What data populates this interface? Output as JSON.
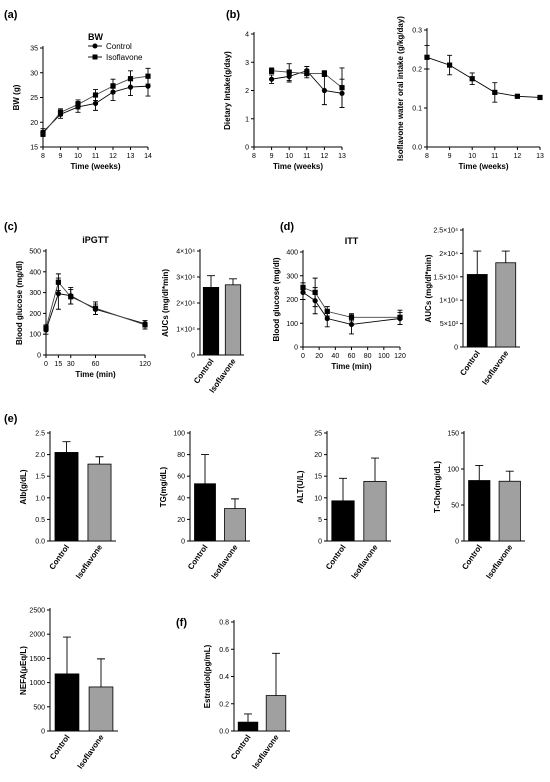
{
  "colors": {
    "control_bar": "#000000",
    "isoflavone_bar": "#a0a0a0",
    "axis": "#000000"
  },
  "panel_letters": [
    "(a)",
    "(b)",
    "(c)",
    "(d)",
    "(e)",
    "(f)"
  ],
  "chart_data": [
    {
      "id": "bw",
      "type": "line",
      "panel": "(a)",
      "title": "BW",
      "xlabel": "Time (weeks)",
      "ylabel": "BW (g)",
      "xlim": [
        8,
        14
      ],
      "ylim": [
        15,
        35
      ],
      "xticks": [
        8,
        9,
        10,
        11,
        12,
        13,
        14
      ],
      "yticks": [
        15,
        20,
        25,
        30,
        35
      ],
      "legend": "top-right",
      "series": [
        {
          "name": "Control",
          "marker": "circle",
          "x": [
            8,
            9,
            10,
            11,
            12,
            13,
            14
          ],
          "values": [
            18.0,
            21.6,
            23.1,
            23.8,
            26.1,
            27.1,
            27.3
          ],
          "err": [
            0.7,
            0.8,
            1.1,
            1.4,
            1.7,
            1.7,
            2.0
          ]
        },
        {
          "name": "Isoflavone",
          "marker": "square",
          "x": [
            8,
            9,
            10,
            11,
            12,
            13,
            14
          ],
          "values": [
            17.7,
            22.0,
            23.6,
            25.5,
            27.3,
            28.8,
            29.3
          ],
          "err": [
            0.6,
            0.7,
            0.9,
            1.1,
            1.4,
            1.6,
            1.6
          ]
        }
      ]
    },
    {
      "id": "intake",
      "type": "line",
      "panel": "(b)",
      "title": "",
      "xlabel": "Time (weeks)",
      "ylabel": "Dietary Intake(g/day)",
      "xlim": [
        8,
        13
      ],
      "ylim": [
        0,
        4
      ],
      "xticks": [
        8,
        9,
        10,
        11,
        12,
        13
      ],
      "yticks": [
        0,
        1,
        2,
        3,
        4
      ],
      "series": [
        {
          "name": "Control",
          "marker": "circle",
          "x": [
            9,
            10,
            11,
            12,
            13
          ],
          "values": [
            2.4,
            2.5,
            2.7,
            2.0,
            1.9
          ],
          "err": [
            0.15,
            0.2,
            0.15,
            0.5,
            0.5
          ]
        },
        {
          "name": "Isoflavone",
          "marker": "square",
          "x": [
            9,
            10,
            11,
            12,
            13
          ],
          "values": [
            2.7,
            2.65,
            2.6,
            2.6,
            2.1
          ],
          "err": [
            0.1,
            0.3,
            0.15,
            0.1,
            0.7
          ]
        }
      ]
    },
    {
      "id": "iso_intake",
      "type": "line",
      "panel": "",
      "title": "",
      "xlabel": "Time (weeks)",
      "ylabel": "Isoflavone water oral intake (g/kg/day)",
      "xlim": [
        8,
        13
      ],
      "ylim": [
        0,
        0.3
      ],
      "xticks": [
        8,
        9,
        10,
        11,
        12,
        13
      ],
      "yticks": [
        0,
        0.1,
        0.2,
        0.3
      ],
      "ytick_labels": [
        "0.0",
        "0.1",
        "0.2",
        "0.3"
      ],
      "series": [
        {
          "name": "Isoflavone",
          "marker": "square",
          "x": [
            8,
            9,
            10,
            11,
            12,
            13
          ],
          "values": [
            0.23,
            0.21,
            0.175,
            0.14,
            0.13,
            0.127
          ],
          "err": [
            0.03,
            0.025,
            0.015,
            0.025,
            0.003,
            0.003
          ]
        }
      ]
    },
    {
      "id": "ipgtt",
      "type": "line",
      "panel": "(c)",
      "title": "iPGTT",
      "xlabel": "Time (min)",
      "ylabel": "Blood glucose (mg/dl)",
      "xlim": [
        0,
        120
      ],
      "ylim": [
        0,
        500
      ],
      "xticks": [
        0,
        15,
        30,
        60,
        120
      ],
      "yticks": [
        0,
        100,
        200,
        300,
        400,
        500
      ],
      "series": [
        {
          "name": "Control",
          "marker": "circle",
          "x": [
            0,
            15,
            30,
            60,
            120
          ],
          "values": [
            120,
            295,
            285,
            220,
            150
          ],
          "err": [
            20,
            75,
            40,
            25,
            15
          ]
        },
        {
          "name": "Isoflavone",
          "marker": "square",
          "x": [
            0,
            15,
            30,
            60,
            120
          ],
          "values": [
            130,
            350,
            280,
            225,
            145
          ],
          "err": [
            15,
            40,
            35,
            30,
            20
          ]
        }
      ]
    },
    {
      "id": "ipgtt_auc",
      "type": "bar",
      "panel": "",
      "title": "",
      "xlabel": "",
      "ylabel": "AUCs (mg/dl*min)",
      "categories": [
        "Control",
        "Isoflavone"
      ],
      "values": [
        26000,
        27000
      ],
      "err": [
        4500,
        2300
      ],
      "ylim": [
        0,
        40000
      ],
      "yticks": [
        0,
        10000,
        20000,
        30000,
        40000
      ],
      "ytick_labels": [
        "0",
        "1×10⁴",
        "2×10⁴",
        "3×10⁴",
        "4×10⁴"
      ]
    },
    {
      "id": "itt",
      "type": "line",
      "panel": "(d)",
      "title": "ITT",
      "xlabel": "Time (min)",
      "ylabel": "Blood glucose (mg/dl)",
      "xlim": [
        0,
        120
      ],
      "ylim": [
        0,
        400
      ],
      "xticks": [
        0,
        20,
        40,
        60,
        80,
        100,
        120
      ],
      "yticks": [
        0,
        100,
        200,
        300,
        400
      ],
      "series": [
        {
          "name": "Control",
          "marker": "circle",
          "x": [
            0,
            15,
            30,
            60,
            120
          ],
          "values": [
            230,
            195,
            120,
            95,
            120
          ],
          "err": [
            30,
            55,
            35,
            40,
            25
          ]
        },
        {
          "name": "Isoflavone",
          "marker": "square",
          "x": [
            0,
            15,
            30,
            60,
            120
          ],
          "values": [
            250,
            230,
            150,
            125,
            125
          ],
          "err": [
            20,
            60,
            20,
            15,
            30
          ]
        }
      ]
    },
    {
      "id": "itt_auc",
      "type": "bar",
      "panel": "",
      "title": "",
      "xlabel": "",
      "ylabel": "AUCs (mg/dl*min)",
      "categories": [
        "Control",
        "Isoflavone"
      ],
      "values": [
        15500,
        18000
      ],
      "err": [
        5000,
        2500
      ],
      "ylim": [
        0,
        25000
      ],
      "yticks": [
        0,
        5000,
        10000,
        15000,
        20000,
        25000
      ],
      "ytick_labels": [
        "0",
        "5×10³",
        "1×10⁴",
        "1.5×10⁴",
        "2×10⁴",
        "2.5×10⁴"
      ]
    },
    {
      "id": "alb",
      "type": "bar",
      "panel": "(e)",
      "title": "",
      "xlabel": "",
      "ylabel": "Alb(g/dL)",
      "categories": [
        "Control",
        "Isoflavone"
      ],
      "values": [
        2.05,
        1.78
      ],
      "err": [
        0.25,
        0.17
      ],
      "ylim": [
        0,
        2.5
      ],
      "yticks": [
        0,
        0.5,
        1.0,
        1.5,
        2.0,
        2.5
      ],
      "ytick_labels": [
        "0.0",
        "0.5",
        "1.0",
        "1.5",
        "2.0",
        "2.5"
      ]
    },
    {
      "id": "tg",
      "type": "bar",
      "panel": "",
      "title": "",
      "xlabel": "",
      "ylabel": "TG(mg/dL)",
      "categories": [
        "Control",
        "Isoflavone"
      ],
      "values": [
        53,
        30
      ],
      "err": [
        27,
        9
      ],
      "ylim": [
        0,
        100
      ],
      "yticks": [
        0,
        20,
        40,
        60,
        80,
        100
      ]
    },
    {
      "id": "alt",
      "type": "bar",
      "panel": "",
      "title": "",
      "xlabel": "",
      "ylabel": "ALT(U/L)",
      "categories": [
        "Control",
        "Isoflavone"
      ],
      "values": [
        9.3,
        13.8
      ],
      "err": [
        5.2,
        5.4
      ],
      "ylim": [
        0,
        25
      ],
      "yticks": [
        0,
        5,
        10,
        15,
        20,
        25
      ]
    },
    {
      "id": "tcho",
      "type": "bar",
      "panel": "",
      "title": "",
      "xlabel": "",
      "ylabel": "T-Cho(mg/dL)",
      "categories": [
        "Control",
        "Isoflavone"
      ],
      "values": [
        84,
        83
      ],
      "err": [
        21,
        14
      ],
      "ylim": [
        0,
        150
      ],
      "yticks": [
        0,
        50,
        100,
        150
      ]
    },
    {
      "id": "nefa",
      "type": "bar",
      "panel": "",
      "title": "",
      "xlabel": "",
      "ylabel": "NEFA(μEq/L)",
      "categories": [
        "Control",
        "Isoflavone"
      ],
      "values": [
        1180,
        910
      ],
      "err": [
        760,
        580
      ],
      "ylim": [
        0,
        2500
      ],
      "yticks": [
        0,
        500,
        1000,
        1500,
        2000,
        2500
      ]
    },
    {
      "id": "estradiol",
      "type": "bar",
      "panel": "(f)",
      "title": "",
      "xlabel": "",
      "ylabel": "Estradiol(pg/mL)",
      "categories": [
        "Control",
        "Isoflavone"
      ],
      "values": [
        0.065,
        0.26
      ],
      "err": [
        0.06,
        0.31
      ],
      "ylim": [
        0,
        0.8
      ],
      "yticks": [
        0,
        0.2,
        0.4,
        0.6,
        0.8
      ],
      "ytick_labels": [
        "0.0",
        "0.2",
        "0.4",
        "0.6",
        "0.8"
      ]
    }
  ]
}
